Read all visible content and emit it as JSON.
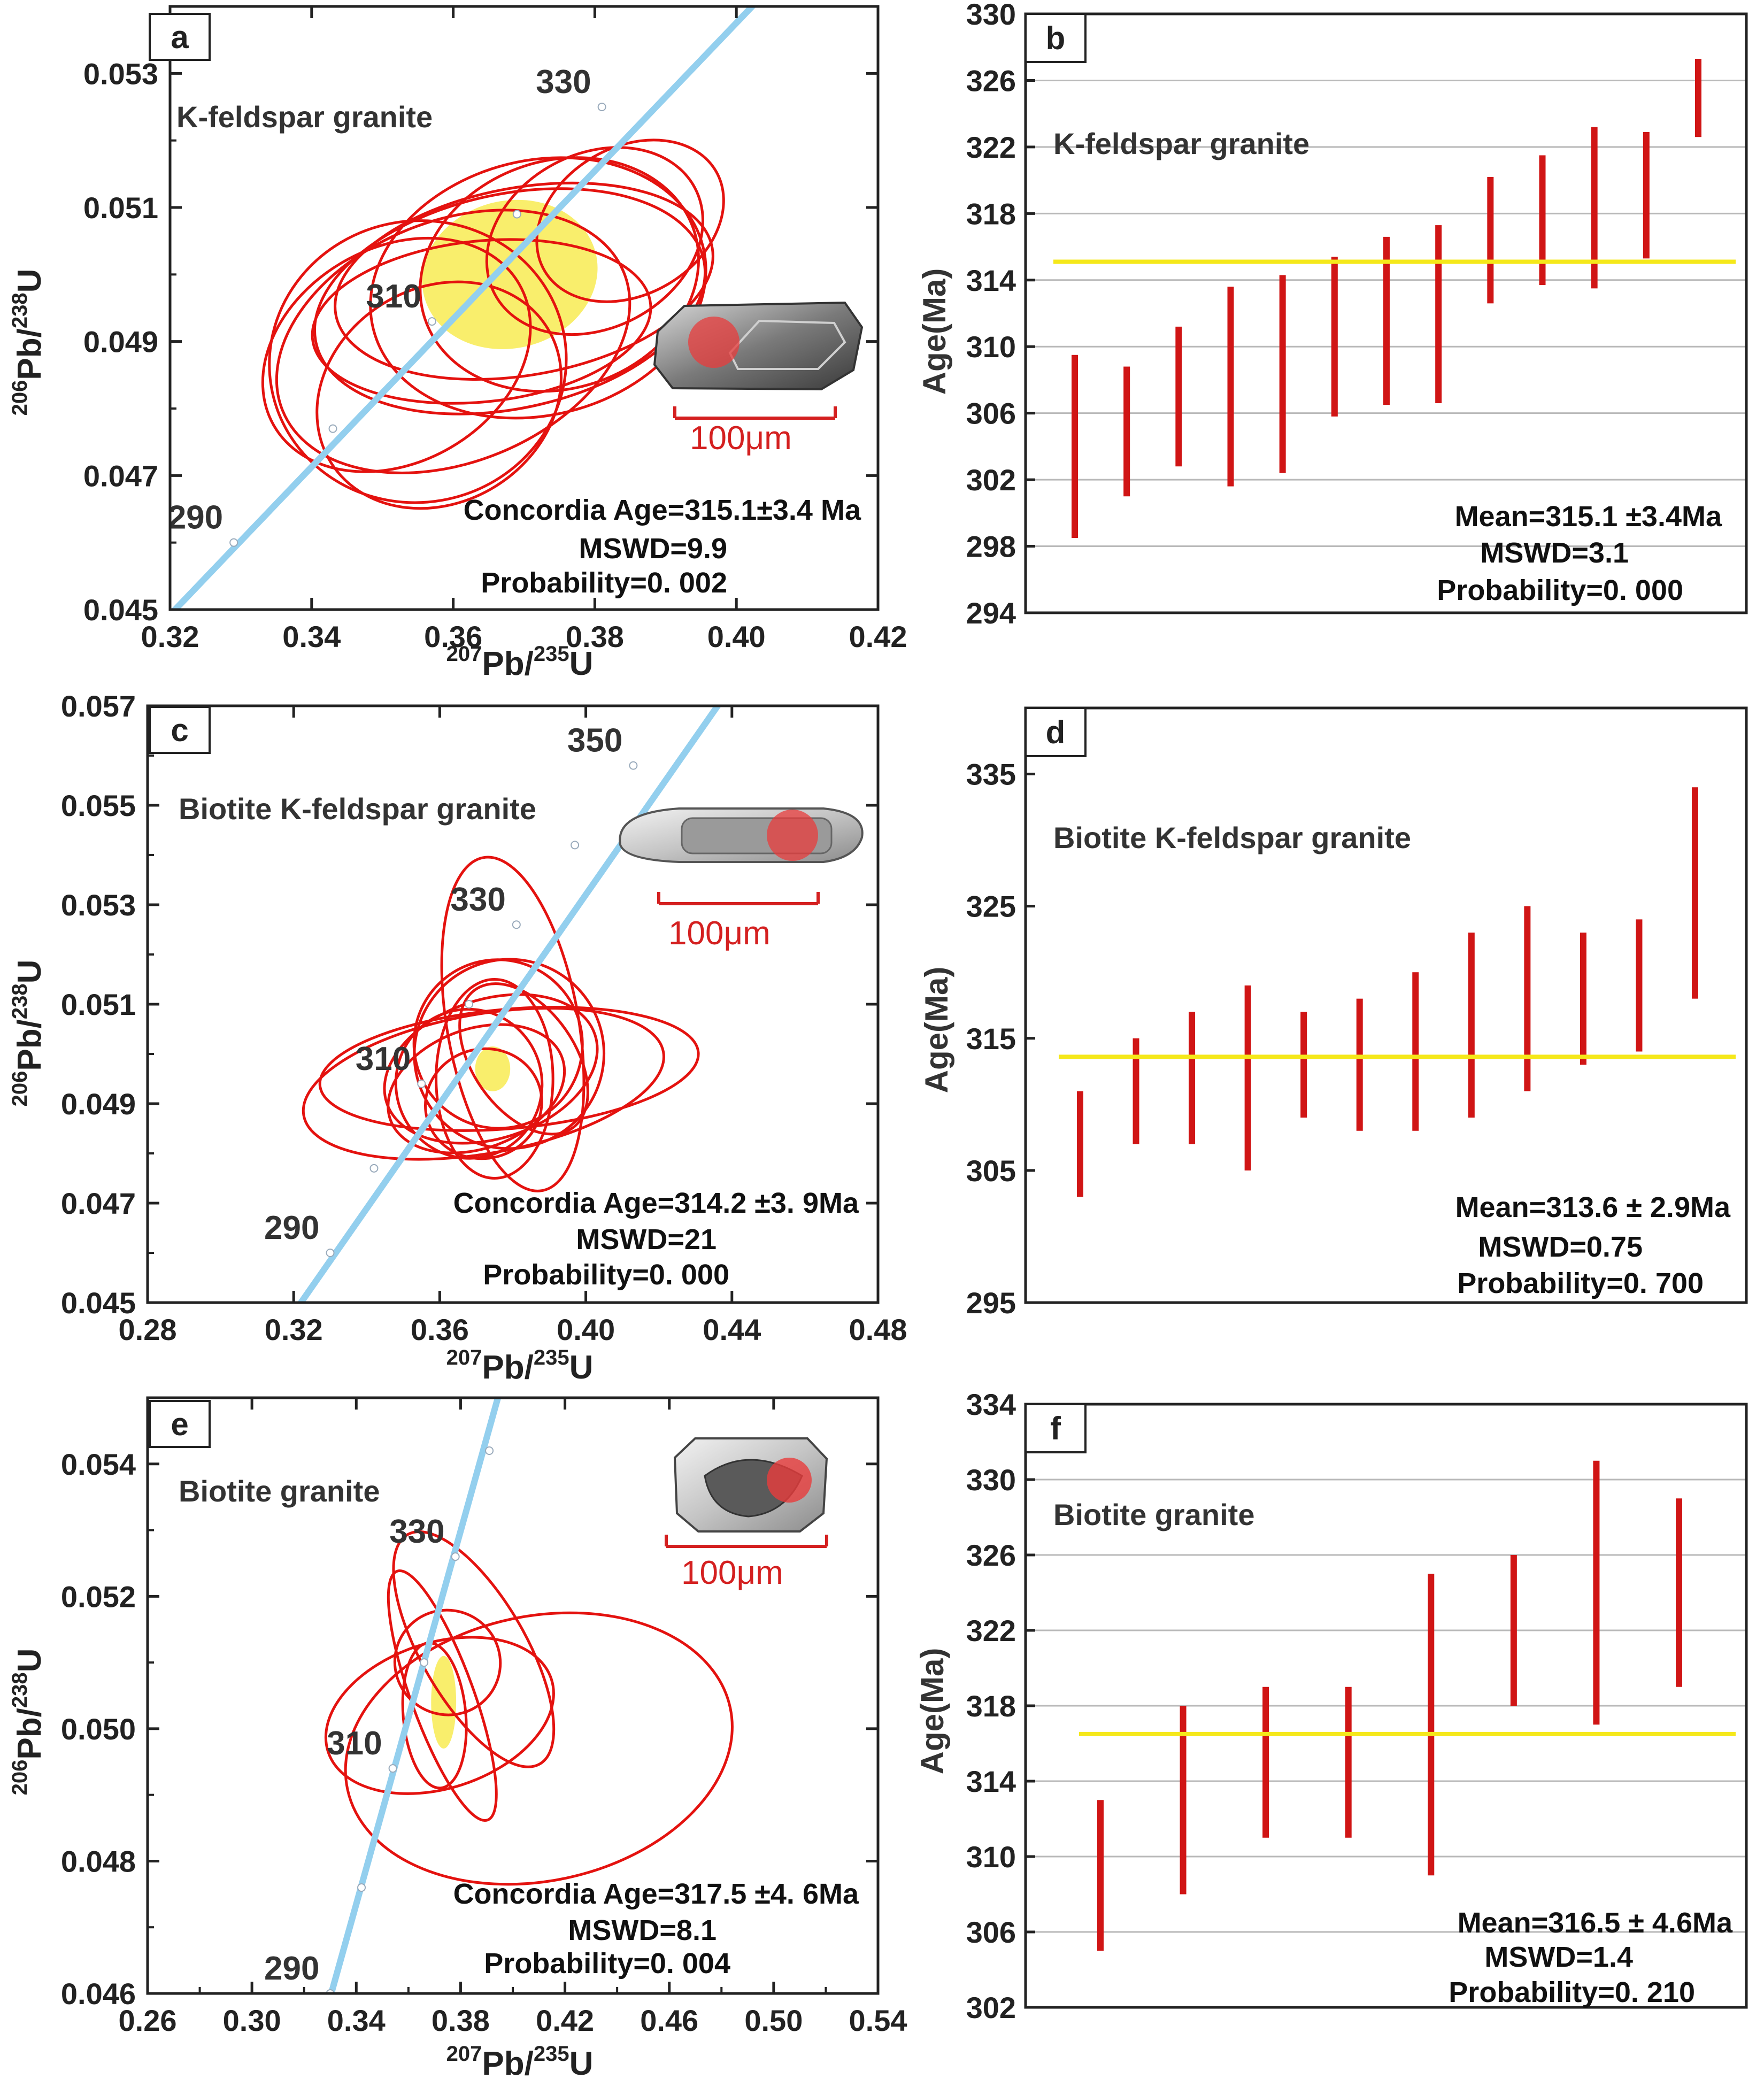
{
  "colors": {
    "ellipse": "#e4120f",
    "mean_ellipse": "#f9ee6c",
    "concordia": "#93cfee",
    "bar": "#d01515",
    "mean_line": "#f5e81a",
    "grid": "#b9b9b9",
    "text": "#222222",
    "scale_text": "#d42020"
  },
  "icons": {
    "zircon": "zircon-grain-image",
    "spot": "analysis-spot"
  },
  "chart_data": [
    {
      "id": "a",
      "type": "scatter",
      "subtype": "concordia",
      "panel_label": "a",
      "title": "K-feldspar granite",
      "xlabel": {
        "sup1": "207",
        "base1": "Pb/",
        "sup2": "235",
        "base2": "U"
      },
      "ylabel": {
        "sup1": "206",
        "base1": "Pb/",
        "sup2": "238",
        "base2": "U"
      },
      "xlim": [
        0.32,
        0.42
      ],
      "ylim": [
        0.045,
        0.054
      ],
      "xticks": [
        0.32,
        0.34,
        0.36,
        0.38,
        0.4,
        0.42
      ],
      "xtick_labels": [
        "0.32",
        "0.34",
        "0.36",
        "0.38",
        "0.40",
        "0.42"
      ],
      "yticks": [
        0.045,
        0.047,
        0.049,
        0.051,
        0.053
      ],
      "ytick_labels": [
        "0.045",
        "0.047",
        "0.049",
        "0.051",
        "0.053"
      ],
      "concordia_marks": [
        {
          "age": 290,
          "x": 0.329,
          "y": 0.046,
          "label": "290"
        },
        {
          "age": 310,
          "x": 0.357,
          "y": 0.0493,
          "label": "310"
        },
        {
          "age": 330,
          "x": 0.381,
          "y": 0.0525,
          "label": "330"
        }
      ],
      "concordia_line": [
        [
          0.318,
          0.0447
        ],
        [
          0.414,
          0.0553
        ]
      ],
      "concordia_dots": [
        [
          0.329,
          0.046
        ],
        [
          0.343,
          0.0477
        ],
        [
          0.357,
          0.0493
        ],
        [
          0.369,
          0.0509
        ],
        [
          0.381,
          0.0525
        ]
      ],
      "ellipses": [
        {
          "cx": 0.375,
          "cy": 0.05,
          "rx": 0.02,
          "ry": 0.0017,
          "rot": 18
        },
        {
          "cx": 0.372,
          "cy": 0.0498,
          "rx": 0.024,
          "ry": 0.0019,
          "rot": 14
        },
        {
          "cx": 0.368,
          "cy": 0.0496,
          "rx": 0.028,
          "ry": 0.0016,
          "rot": 12
        },
        {
          "cx": 0.37,
          "cy": 0.0499,
          "rx": 0.027,
          "ry": 0.0014,
          "rot": 10
        },
        {
          "cx": 0.36,
          "cy": 0.049,
          "rx": 0.026,
          "ry": 0.0018,
          "rot": 22
        },
        {
          "cx": 0.355,
          "cy": 0.0487,
          "rx": 0.021,
          "ry": 0.0021,
          "rot": 10
        },
        {
          "cx": 0.352,
          "cy": 0.0488,
          "rx": 0.02,
          "ry": 0.0016,
          "rot": 30
        },
        {
          "cx": 0.38,
          "cy": 0.0505,
          "rx": 0.016,
          "ry": 0.0013,
          "rot": 28
        },
        {
          "cx": 0.358,
          "cy": 0.0482,
          "rx": 0.018,
          "ry": 0.0016,
          "rot": 32
        },
        {
          "cx": 0.364,
          "cy": 0.0493,
          "rx": 0.024,
          "ry": 0.0012,
          "rot": 6
        },
        {
          "cx": 0.385,
          "cy": 0.0508,
          "rx": 0.014,
          "ry": 0.0011,
          "rot": 30
        }
      ],
      "mean_ellipse": {
        "cx": 0.368,
        "cy": 0.05,
        "rx": 0.0125,
        "ry": 0.0011,
        "rot": 14
      },
      "annotations": [
        "Concordia Age=315.1±3.4 Ma",
        "MSWD=9.9",
        "Probability=0. 002"
      ],
      "inset": {
        "scale_label": "100μm"
      }
    },
    {
      "id": "c",
      "type": "scatter",
      "subtype": "concordia",
      "panel_label": "c",
      "title": "Biotite K-feldspar granite",
      "xlabel": {
        "sup1": "207",
        "base1": "Pb/",
        "sup2": "235",
        "base2": "U"
      },
      "ylabel": {
        "sup1": "206",
        "base1": "Pb/",
        "sup2": "238",
        "base2": "U"
      },
      "xlim": [
        0.28,
        0.48
      ],
      "ylim": [
        0.045,
        0.057
      ],
      "xticks": [
        0.28,
        0.32,
        0.36,
        0.4,
        0.44,
        0.48
      ],
      "xtick_labels": [
        "0.28",
        "0.32",
        "0.36",
        "0.40",
        "0.44",
        "0.48"
      ],
      "yticks": [
        0.045,
        0.047,
        0.049,
        0.051,
        0.053,
        0.055,
        0.057
      ],
      "ytick_labels": [
        "0.045",
        "0.047",
        "0.049",
        "0.051",
        "0.053",
        "0.055",
        "0.057"
      ],
      "concordia_marks": [
        {
          "age": 290,
          "x": 0.33,
          "y": 0.046,
          "label": "290"
        },
        {
          "age": 310,
          "x": 0.355,
          "y": 0.0494,
          "label": "310"
        },
        {
          "age": 330,
          "x": 0.381,
          "y": 0.0526,
          "label": "330"
        },
        {
          "age": 350,
          "x": 0.413,
          "y": 0.0558,
          "label": "350"
        }
      ],
      "concordia_line": [
        [
          0.322,
          0.045
        ],
        [
          0.438,
          0.0572
        ]
      ],
      "concordia_dots": [
        [
          0.33,
          0.046
        ],
        [
          0.342,
          0.0477
        ],
        [
          0.355,
          0.0494
        ],
        [
          0.368,
          0.051
        ],
        [
          0.381,
          0.0526
        ],
        [
          0.397,
          0.0542
        ],
        [
          0.413,
          0.0558
        ]
      ],
      "ellipses": [
        {
          "cx": 0.372,
          "cy": 0.0494,
          "rx": 0.05,
          "ry": 0.0014,
          "rot": 10
        },
        {
          "cx": 0.379,
          "cy": 0.0497,
          "rx": 0.052,
          "ry": 0.0012,
          "rot": 5
        },
        {
          "cx": 0.374,
          "cy": 0.0497,
          "rx": 0.03,
          "ry": 0.0014,
          "rot": 18
        },
        {
          "cx": 0.376,
          "cy": 0.0502,
          "rx": 0.023,
          "ry": 0.0017,
          "rot": 40
        },
        {
          "cx": 0.38,
          "cy": 0.0506,
          "rx": 0.018,
          "ry": 0.0034,
          "rot": 10
        },
        {
          "cx": 0.37,
          "cy": 0.0493,
          "rx": 0.025,
          "ry": 0.0012,
          "rot": 20
        },
        {
          "cx": 0.375,
          "cy": 0.0495,
          "rx": 0.016,
          "ry": 0.002,
          "rot": 0
        },
        {
          "cx": 0.368,
          "cy": 0.0494,
          "rx": 0.02,
          "ry": 0.0015,
          "rot": 12
        },
        {
          "cx": 0.379,
          "cy": 0.05,
          "rx": 0.026,
          "ry": 0.0019,
          "rot": 30
        },
        {
          "cx": 0.372,
          "cy": 0.049,
          "rx": 0.016,
          "ry": 0.0011,
          "rot": 15
        },
        {
          "cx": 0.383,
          "cy": 0.0499,
          "rx": 0.014,
          "ry": 0.0017,
          "rot": 35
        }
      ],
      "mean_ellipse": {
        "cx": 0.3745,
        "cy": 0.0497,
        "rx": 0.0048,
        "ry": 0.00045,
        "rot": 0
      },
      "annotations": [
        "Concordia Age=314.2 ±3. 9Ma",
        "MSWD=21",
        "Probability=0. 000"
      ],
      "inset": {
        "scale_label": "100μm"
      }
    },
    {
      "id": "e",
      "type": "scatter",
      "subtype": "concordia",
      "panel_label": "e",
      "title": "Biotite granite",
      "xlabel": {
        "sup1": "207",
        "base1": "Pb/",
        "sup2": "235",
        "base2": "U"
      },
      "ylabel": {
        "sup1": "206",
        "base1": "Pb/",
        "sup2": "238",
        "base2": "U"
      },
      "xlim": [
        0.26,
        0.54
      ],
      "ylim": [
        0.046,
        0.055
      ],
      "xticks": [
        0.26,
        0.3,
        0.34,
        0.38,
        0.42,
        0.46,
        0.5,
        0.54
      ],
      "xticks_minor": [
        0.28,
        0.32,
        0.36,
        0.4,
        0.44,
        0.48,
        0.52
      ],
      "xtick_labels": [
        "0.26",
        "0.30",
        "0.34",
        "0.38",
        "0.42",
        "0.46",
        "0.50",
        "0.54"
      ],
      "xtick_labels_minor": [
        "",
        "",
        "",
        "",
        "",
        "",
        ""
      ],
      "yticks": [
        0.046,
        0.048,
        0.05,
        0.052,
        0.054
      ],
      "ytick_labels": [
        "0.046",
        "0.048",
        "0.050",
        "0.052",
        "0.054"
      ],
      "concordia_marks": [
        {
          "age": 290,
          "x": 0.33,
          "y": 0.046,
          "label": "290"
        },
        {
          "age": 310,
          "x": 0.354,
          "y": 0.0494,
          "label": "310"
        },
        {
          "age": 330,
          "x": 0.378,
          "y": 0.0526,
          "label": "330"
        }
      ],
      "concordia_line": [
        [
          0.329,
          0.0458
        ],
        [
          0.395,
          0.0551
        ]
      ],
      "concordia_dots": [
        [
          0.33,
          0.046
        ],
        [
          0.342,
          0.0476
        ],
        [
          0.354,
          0.0494
        ],
        [
          0.366,
          0.051
        ],
        [
          0.378,
          0.0526
        ],
        [
          0.391,
          0.0542
        ]
      ],
      "ellipses": [
        {
          "cx": 0.41,
          "cy": 0.0497,
          "rx": 0.075,
          "ry": 0.002,
          "rot": 12
        },
        {
          "cx": 0.372,
          "cy": 0.0502,
          "rx": 0.045,
          "ry": 0.0011,
          "rot": 18
        },
        {
          "cx": 0.385,
          "cy": 0.0512,
          "rx": 0.02,
          "ry": 0.002,
          "rot": 30
        },
        {
          "cx": 0.373,
          "cy": 0.0505,
          "rx": 0.012,
          "ry": 0.002,
          "rot": 20
        },
        {
          "cx": 0.375,
          "cy": 0.051,
          "rx": 0.02,
          "ry": 0.0008,
          "rot": 60
        },
        {
          "cx": 0.37,
          "cy": 0.0502,
          "rx": 0.012,
          "ry": 0.0011,
          "rot": 5
        }
      ],
      "mean_ellipse": {
        "cx": 0.3735,
        "cy": 0.0504,
        "rx": 0.0048,
        "ry": 0.0007,
        "rot": 0
      },
      "annotations": [
        "Concordia Age=317.5 ±4. 6Ma",
        "MSWD=8.1",
        "Probability=0. 004"
      ],
      "inset": {
        "scale_label": "100μm"
      }
    },
    {
      "id": "b",
      "type": "bar",
      "subtype": "weighted-mean",
      "panel_label": "b",
      "title": "K-feldspar granite",
      "ylabel": "Age(Ma)",
      "ylim": [
        294,
        330
      ],
      "yticks": [
        294,
        298,
        302,
        306,
        310,
        314,
        318,
        322,
        326,
        330
      ],
      "ytick_labels": [
        "294",
        "298",
        "302",
        "306",
        "310",
        "314",
        "318",
        "322",
        "326",
        "330"
      ],
      "grid": true,
      "mean": 315.1,
      "bars": [
        [
          298.5,
          309.5
        ],
        [
          301.0,
          308.8
        ],
        [
          302.8,
          311.2
        ],
        [
          301.6,
          313.6
        ],
        [
          302.4,
          314.3
        ],
        [
          305.8,
          315.4
        ],
        [
          306.5,
          316.6
        ],
        [
          306.6,
          317.3
        ],
        [
          312.6,
          320.2
        ],
        [
          313.7,
          321.5
        ],
        [
          313.5,
          323.2
        ],
        [
          315.3,
          322.9
        ],
        [
          322.6,
          327.3
        ]
      ],
      "annotations": [
        "Mean=315.1 ±3.4Ma",
        "MSWD=3.1",
        "Probability=0. 000"
      ]
    },
    {
      "id": "d",
      "type": "bar",
      "subtype": "weighted-mean",
      "panel_label": "d",
      "title": "Biotite K-feldspar granite",
      "ylabel": "Age(Ma)",
      "ylim": [
        295,
        340
      ],
      "yticks": [
        295,
        305,
        315,
        325,
        335
      ],
      "ytick_labels": [
        "295",
        "305",
        "315",
        "325",
        "335"
      ],
      "grid": false,
      "mean": 313.6,
      "bars": [
        [
          303.0,
          311.0
        ],
        [
          307.0,
          315.0
        ],
        [
          307.0,
          317.0
        ],
        [
          305.0,
          319.0
        ],
        [
          309.0,
          317.0
        ],
        [
          308.0,
          318.0
        ],
        [
          308.0,
          320.0
        ],
        [
          309.0,
          323.0
        ],
        [
          311.0,
          325.0
        ],
        [
          313.0,
          323.0
        ],
        [
          314.0,
          324.0
        ],
        [
          318.0,
          334.0
        ]
      ],
      "annotations": [
        "Mean=313.6 ± 2.9Ma",
        "MSWD=0.75",
        "Probability=0. 700"
      ]
    },
    {
      "id": "f",
      "type": "bar",
      "subtype": "weighted-mean",
      "panel_label": "f",
      "title": "Biotite granite",
      "ylabel": "Age(Ma)",
      "ylim": [
        302,
        334
      ],
      "yticks": [
        302,
        306,
        310,
        314,
        318,
        322,
        326,
        330,
        334
      ],
      "ytick_labels": [
        "302",
        "306",
        "310",
        "314",
        "318",
        "322",
        "326",
        "330",
        "334"
      ],
      "grid": true,
      "mean": 316.5,
      "bars": [
        [
          305.0,
          313.0
        ],
        [
          308.0,
          318.0
        ],
        [
          311.0,
          319.0
        ],
        [
          311.0,
          319.0
        ],
        [
          309.0,
          325.0
        ],
        [
          318.0,
          326.0
        ],
        [
          317.0,
          331.0
        ],
        [
          319.0,
          329.0
        ]
      ],
      "annotations": [
        "Mean=316.5 ± 4.6Ma",
        "MSWD=1.4",
        "Probability=0. 210"
      ]
    }
  ]
}
